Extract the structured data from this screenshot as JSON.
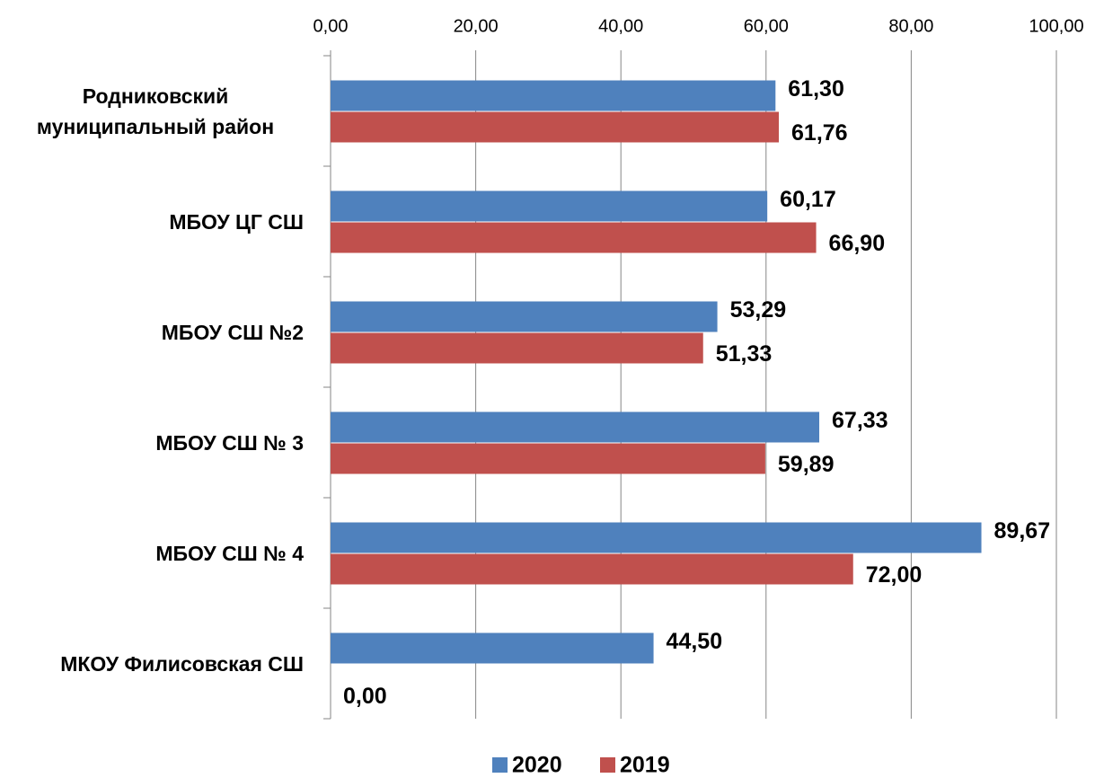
{
  "chart_data": {
    "type": "barh",
    "categories": [
      "Родниковский муниципальный район",
      "МБОУ ЦГ СШ",
      "МБОУ СШ №2",
      "МБОУ СШ № 3",
      "МБОУ СШ № 4",
      "МКОУ Филисовская СШ"
    ],
    "series": [
      {
        "name": "2020",
        "color": "#4f81bd",
        "values": [
          61.3,
          60.17,
          53.29,
          67.33,
          89.67,
          44.5
        ],
        "value_labels": [
          "61,30",
          "60,17",
          "53,29",
          "67,33",
          "89,67",
          "44,50"
        ]
      },
      {
        "name": "2019",
        "color": "#c0504d",
        "values": [
          61.76,
          66.9,
          51.33,
          59.89,
          72.0,
          0.0
        ],
        "value_labels": [
          "61,76",
          "66,90",
          "51,33",
          "59,89",
          "72,00",
          "0,00"
        ]
      }
    ],
    "xlim": [
      0,
      100
    ],
    "xticks": [
      {
        "value": 0,
        "label": "0,00"
      },
      {
        "value": 20,
        "label": "20,00"
      },
      {
        "value": 40,
        "label": "40,00"
      },
      {
        "value": 60,
        "label": "60,00"
      },
      {
        "value": 80,
        "label": "80,00"
      },
      {
        "value": 100,
        "label": "100,00"
      }
    ],
    "grid": true,
    "legend": "bottom"
  }
}
